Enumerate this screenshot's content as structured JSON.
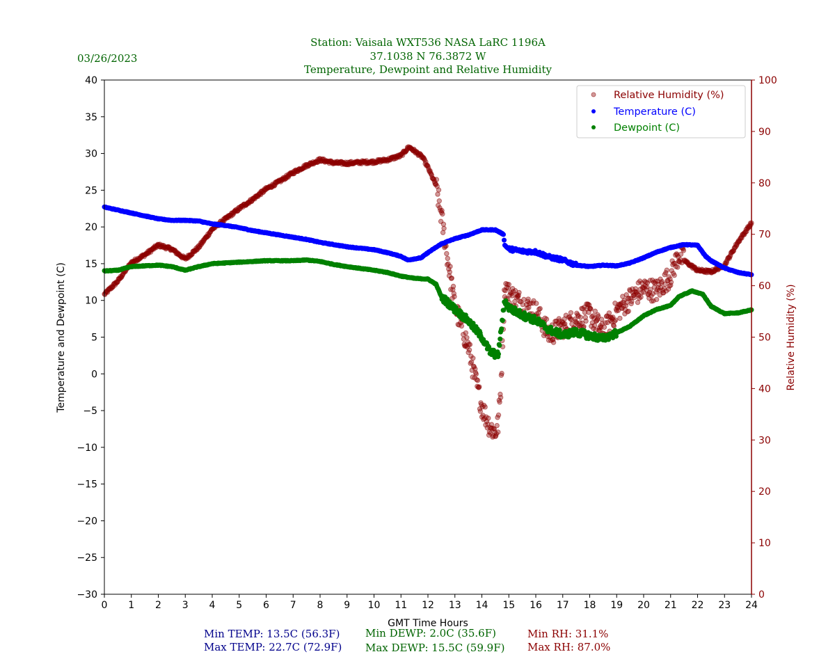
{
  "header": {
    "date": "03/26/2023",
    "title_lines": [
      "Station:  Vaisala WXT536  NASA LaRC 1196A",
      "37.1038 N 76.3872 W",
      "Temperature, Dewpoint and Relative Humidity"
    ]
  },
  "colors": {
    "title": "#006400",
    "temperature": "#0000ff",
    "dewpoint": "#008000",
    "rh": "#8b0000",
    "stats_temp": "#00008b",
    "stats_dewp": "#006400",
    "stats_rh": "#8b0000"
  },
  "stats": {
    "min_temp": "Min TEMP: 13.5C (56.3F)",
    "max_temp": "Max TEMP: 22.7C (72.9F)",
    "min_dewp": "Min DEWP: 2.0C (35.6F)",
    "max_dewp": "Max DEWP: 15.5C (59.9F)",
    "min_rh": "Min RH: 31.1%",
    "max_rh": "Max RH: 87.0%"
  },
  "chart_data": {
    "type": "scatter",
    "title": "Temperature, Dewpoint and Relative Humidity",
    "xlabel": "GMT Time Hours",
    "ylabel": "Temperature and Dewpoint (C)",
    "y2label": "Relative Humidity (%)",
    "xlim": [
      0,
      24
    ],
    "ylim": [
      -30,
      40
    ],
    "y2lim": [
      0,
      100
    ],
    "xticks": [
      0,
      1,
      2,
      3,
      4,
      5,
      6,
      7,
      8,
      9,
      10,
      11,
      12,
      13,
      14,
      15,
      16,
      17,
      18,
      19,
      20,
      21,
      22,
      23,
      24
    ],
    "yticks": [
      40,
      35,
      30,
      25,
      20,
      15,
      10,
      5,
      0,
      -5,
      -10,
      -15,
      -20,
      -25,
      -30
    ],
    "y2ticks": [
      100,
      90,
      80,
      70,
      60,
      50,
      40,
      30,
      20,
      10,
      0
    ],
    "grid": false,
    "legend_position": "top-right",
    "legend": [
      "Relative Humidity (%)",
      "Temperature (C)",
      "Dewpoint (C)"
    ],
    "series": [
      {
        "name": "Relative Humidity (%)",
        "axis": "right",
        "x": [
          0,
          0.5,
          1,
          1.5,
          2,
          2.5,
          3,
          3.5,
          4,
          4.5,
          5,
          5.5,
          6,
          6.5,
          7,
          7.5,
          8,
          8.5,
          9,
          9.5,
          10,
          10.5,
          11,
          11.3,
          11.8,
          12,
          12.3,
          12.5,
          12.75,
          13,
          13.25,
          13.5,
          13.75,
          14,
          14.3,
          14.5,
          14.6,
          14.7,
          14.85,
          15,
          15.5,
          16,
          16.5,
          17,
          17.5,
          18,
          18.5,
          19,
          19.5,
          20,
          20.5,
          21,
          21.3,
          21.6,
          22,
          22.5,
          23,
          23.5,
          24
        ],
        "values": [
          58.3,
          60.9,
          64.5,
          66.0,
          67.9,
          67.1,
          65.2,
          67.5,
          71.0,
          73.0,
          75.0,
          76.8,
          78.8,
          80.3,
          82.0,
          83.4,
          84.5,
          83.9,
          83.8,
          84.0,
          84.1,
          84.5,
          85.3,
          87.0,
          85.0,
          83.0,
          79.5,
          73.5,
          64.5,
          56.0,
          52.0,
          48.0,
          42.0,
          36.5,
          32.5,
          31.5,
          33.0,
          40.0,
          60.0,
          58.5,
          56.5,
          55.0,
          50.5,
          52.0,
          53.5,
          54.5,
          51.0,
          55.0,
          57.5,
          59.5,
          59.0,
          62.0,
          66.0,
          64.5,
          63.0,
          62.7,
          64.0,
          68.5,
          72.2
        ]
      },
      {
        "name": "Temperature (C)",
        "axis": "left",
        "x": [
          0,
          0.5,
          1,
          1.5,
          2,
          2.5,
          3,
          3.5,
          4,
          4.5,
          5,
          5.5,
          6,
          6.5,
          7,
          7.5,
          8,
          8.5,
          9,
          9.5,
          10,
          10.5,
          11,
          11.25,
          11.75,
          12,
          12.5,
          13,
          13.5,
          14,
          14.5,
          14.8,
          14.85,
          15,
          15.5,
          16,
          16.5,
          17,
          17.5,
          18,
          18.5,
          19,
          19.5,
          20,
          20.5,
          21,
          21.5,
          22,
          22.3,
          22.5,
          23,
          23.5,
          24
        ],
        "values": [
          22.7,
          22.3,
          21.9,
          21.5,
          21.1,
          20.9,
          20.9,
          20.8,
          20.4,
          20.2,
          19.9,
          19.5,
          19.2,
          18.9,
          18.6,
          18.3,
          17.9,
          17.6,
          17.3,
          17.1,
          16.9,
          16.5,
          16.0,
          15.5,
          15.8,
          16.5,
          17.7,
          18.4,
          18.9,
          19.6,
          19.6,
          19.0,
          17.5,
          17.0,
          16.7,
          16.6,
          15.9,
          15.5,
          14.8,
          14.6,
          14.8,
          14.7,
          15.1,
          15.8,
          16.6,
          17.2,
          17.6,
          17.5,
          16.0,
          15.4,
          14.4,
          13.8,
          13.5
        ]
      },
      {
        "name": "Dewpoint (C)",
        "axis": "left",
        "x": [
          0,
          0.5,
          1,
          2,
          2.5,
          3,
          3.5,
          4,
          5,
          6,
          7,
          7.5,
          8,
          8.5,
          9,
          10,
          10.5,
          11,
          11.5,
          12,
          12.3,
          12.5,
          13,
          13.5,
          14,
          14.3,
          14.6,
          14.75,
          14.85,
          15,
          15.5,
          16,
          16.5,
          17,
          17.5,
          18,
          18.5,
          19,
          19.5,
          20,
          20.5,
          21,
          21.3,
          21.8,
          22.2,
          22.5,
          23,
          23.5,
          24
        ],
        "values": [
          14.0,
          14.1,
          14.6,
          14.8,
          14.6,
          14.1,
          14.6,
          15.0,
          15.2,
          15.4,
          15.4,
          15.5,
          15.3,
          14.9,
          14.6,
          14.1,
          13.8,
          13.3,
          13.0,
          12.9,
          12.2,
          10.5,
          8.8,
          7.2,
          5.0,
          3.0,
          2.5,
          7.0,
          10.0,
          9.0,
          8.0,
          7.3,
          6.0,
          5.3,
          5.7,
          5.2,
          4.8,
          5.6,
          6.5,
          7.9,
          8.8,
          9.3,
          10.5,
          11.3,
          10.8,
          9.2,
          8.2,
          8.3,
          8.7
        ]
      }
    ]
  }
}
